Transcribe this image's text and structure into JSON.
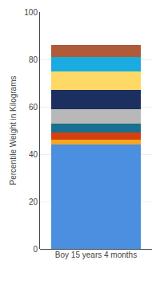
{
  "chart_data": {
    "type": "bar",
    "stacked": true,
    "categories": [
      "Boy 15 years 4 months"
    ],
    "series": [
      {
        "color": "#4A8FE0",
        "values": [
          44
        ]
      },
      {
        "color": "#F5A623",
        "values": [
          2
        ]
      },
      {
        "color": "#D44010",
        "values": [
          3
        ]
      },
      {
        "color": "#1A7090",
        "values": [
          4
        ]
      },
      {
        "color": "#B8B8B8",
        "values": [
          6
        ]
      },
      {
        "color": "#1C3060",
        "values": [
          8
        ]
      },
      {
        "color": "#FFD966",
        "values": [
          8
        ]
      },
      {
        "color": "#1AACE0",
        "values": [
          6
        ]
      },
      {
        "color": "#B05A38",
        "values": [
          5
        ]
      }
    ],
    "ylabel": "Percentile Weight in Kilograms",
    "ylim": [
      0,
      100
    ],
    "yticks": [
      0,
      20,
      40,
      60,
      80,
      100
    ],
    "grid": true
  }
}
